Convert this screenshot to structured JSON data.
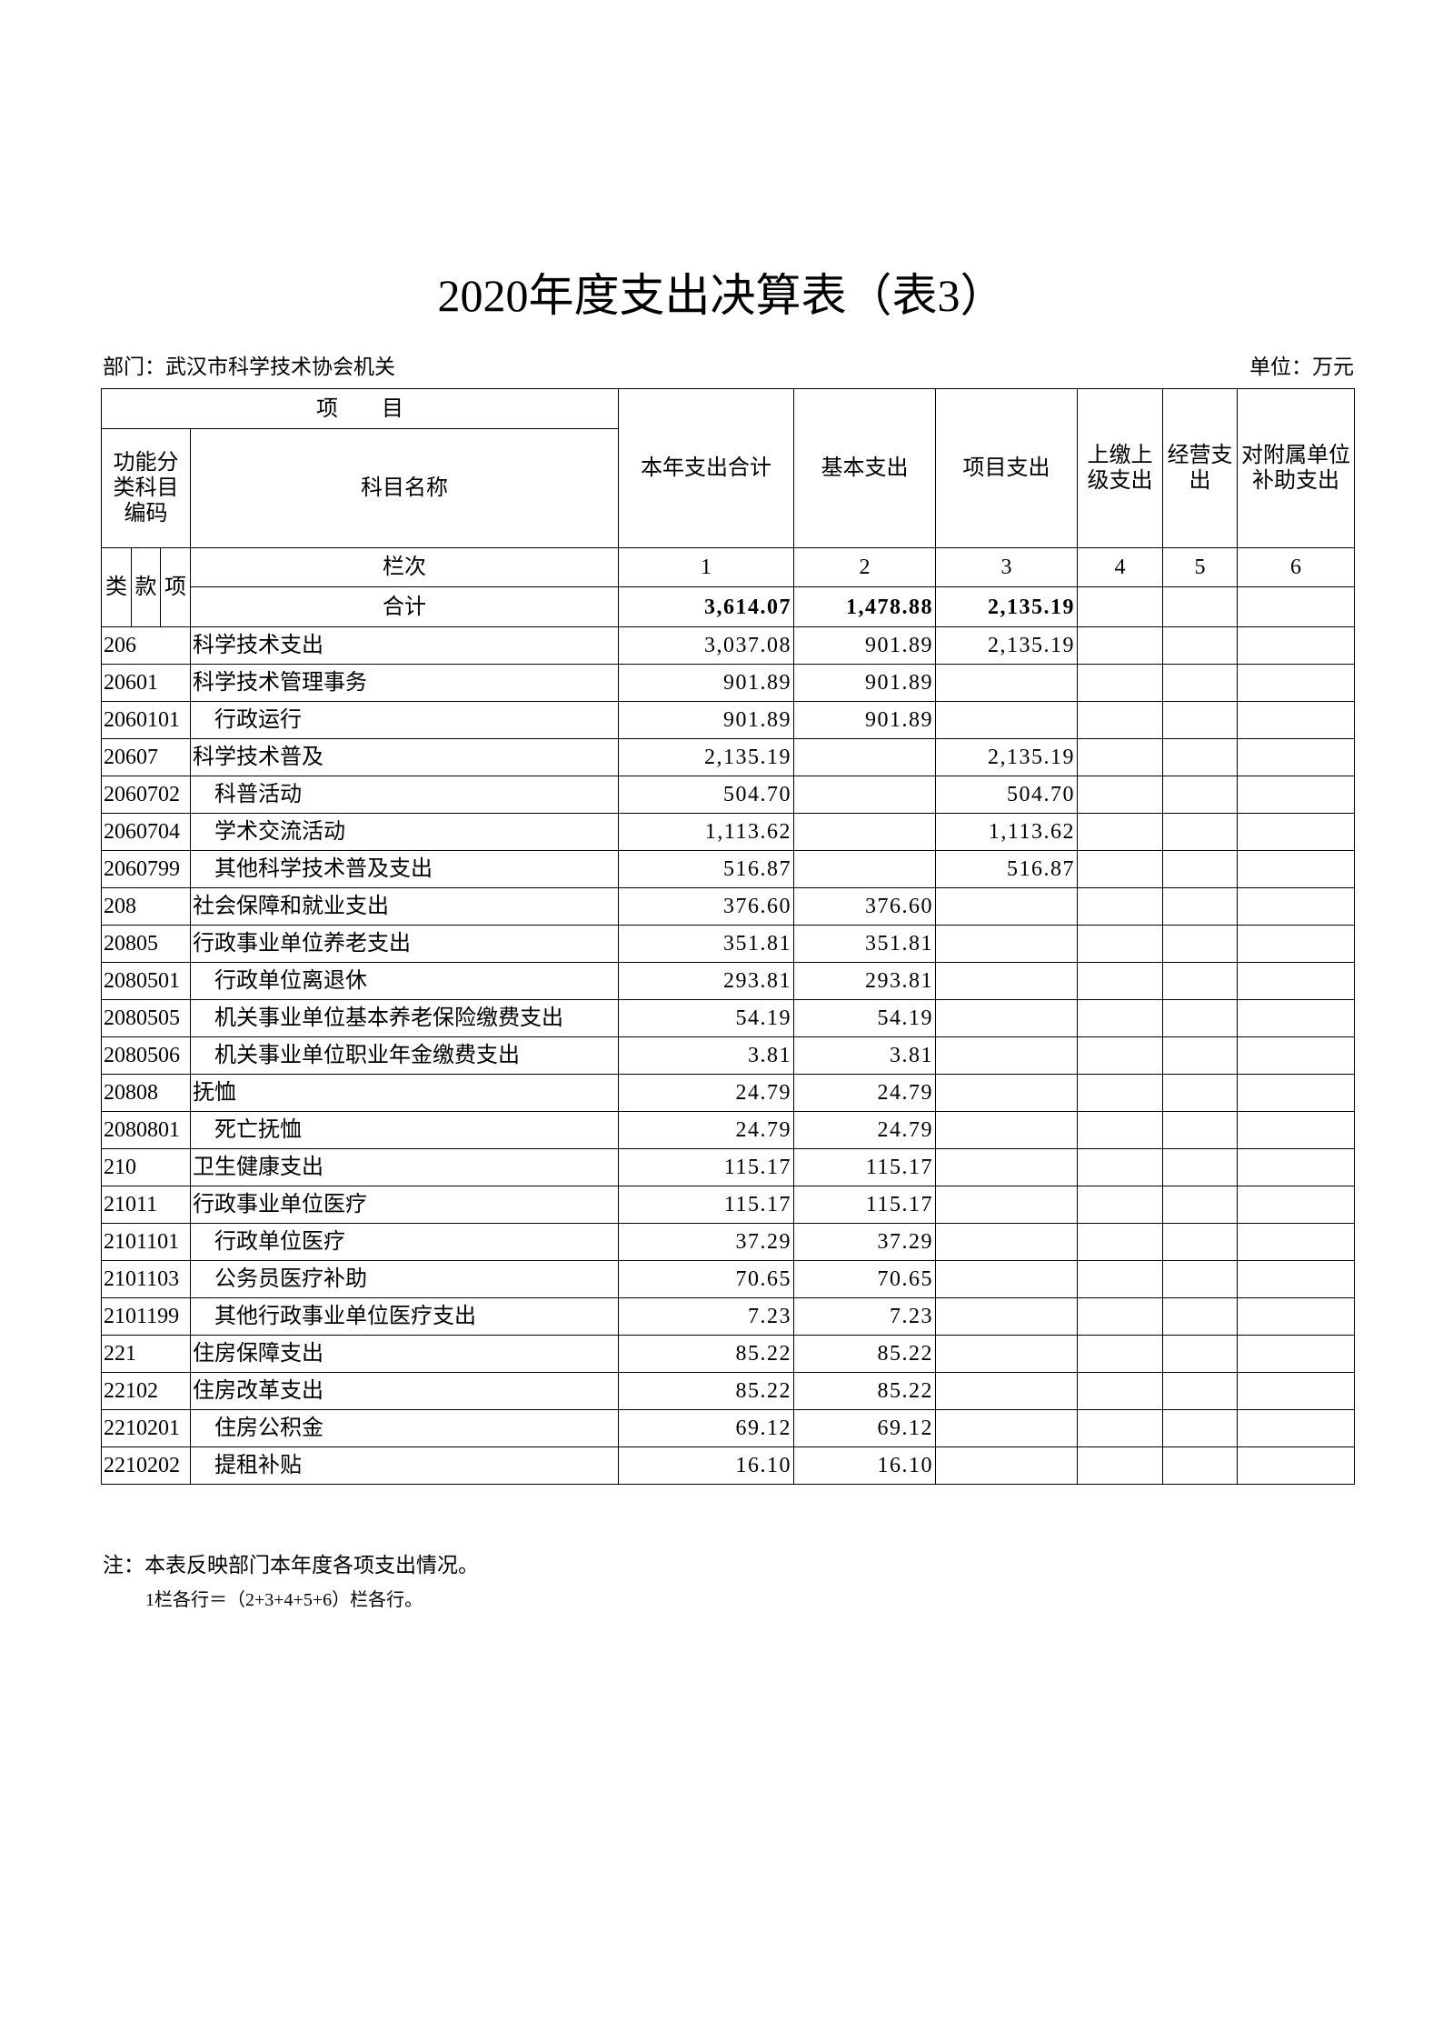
{
  "title": "2020年度支出决算表（表3）",
  "department": "部门：武汉市科学技术协会机关",
  "unit": "单位：万元",
  "headers": {
    "item": "项　　目",
    "code": "功能分类科目编码",
    "name": "科目名称",
    "total": "本年支出合计",
    "basic": "基本支出",
    "project": "项目支出",
    "upper": "上缴上级支出",
    "business": "经营支出",
    "subsidy": "对附属单位补助支出",
    "lei": "类",
    "kuan": "款",
    "xiang": "项",
    "col_label": "栏次",
    "col_nums": [
      "1",
      "2",
      "3",
      "4",
      "5",
      "6"
    ],
    "sum_label": "合计"
  },
  "totals": {
    "total": "3,614.07",
    "basic": "1,478.88",
    "project": "2,135.19"
  },
  "rows": [
    {
      "code": "206",
      "name": "科学技术支出",
      "indent": false,
      "total": "3,037.08",
      "basic": "901.89",
      "project": "2,135.19"
    },
    {
      "code": "20601",
      "name": "科学技术管理事务",
      "indent": false,
      "total": "901.89",
      "basic": "901.89",
      "project": ""
    },
    {
      "code": "2060101",
      "name": "行政运行",
      "indent": true,
      "total": "901.89",
      "basic": "901.89",
      "project": ""
    },
    {
      "code": "20607",
      "name": "科学技术普及",
      "indent": false,
      "total": "2,135.19",
      "basic": "",
      "project": "2,135.19"
    },
    {
      "code": "2060702",
      "name": "科普活动",
      "indent": true,
      "total": "504.70",
      "basic": "",
      "project": "504.70"
    },
    {
      "code": "2060704",
      "name": "学术交流活动",
      "indent": true,
      "total": "1,113.62",
      "basic": "",
      "project": "1,113.62"
    },
    {
      "code": "2060799",
      "name": "其他科学技术普及支出",
      "indent": true,
      "total": "516.87",
      "basic": "",
      "project": "516.87"
    },
    {
      "code": "208",
      "name": "社会保障和就业支出",
      "indent": false,
      "total": "376.60",
      "basic": "376.60",
      "project": ""
    },
    {
      "code": "20805",
      "name": "行政事业单位养老支出",
      "indent": false,
      "total": "351.81",
      "basic": "351.81",
      "project": ""
    },
    {
      "code": "2080501",
      "name": "行政单位离退休",
      "indent": true,
      "total": "293.81",
      "basic": "293.81",
      "project": ""
    },
    {
      "code": "2080505",
      "name": "机关事业单位基本养老保险缴费支出",
      "indent": true,
      "total": "54.19",
      "basic": "54.19",
      "project": ""
    },
    {
      "code": "2080506",
      "name": "机关事业单位职业年金缴费支出",
      "indent": true,
      "total": "3.81",
      "basic": "3.81",
      "project": ""
    },
    {
      "code": "20808",
      "name": "抚恤",
      "indent": false,
      "total": "24.79",
      "basic": "24.79",
      "project": ""
    },
    {
      "code": "2080801",
      "name": "死亡抚恤",
      "indent": true,
      "total": "24.79",
      "basic": "24.79",
      "project": ""
    },
    {
      "code": "210",
      "name": "卫生健康支出",
      "indent": false,
      "total": "115.17",
      "basic": "115.17",
      "project": ""
    },
    {
      "code": "21011",
      "name": "行政事业单位医疗",
      "indent": false,
      "total": "115.17",
      "basic": "115.17",
      "project": ""
    },
    {
      "code": "2101101",
      "name": "行政单位医疗",
      "indent": true,
      "total": "37.29",
      "basic": "37.29",
      "project": ""
    },
    {
      "code": "2101103",
      "name": "公务员医疗补助",
      "indent": true,
      "total": "70.65",
      "basic": "70.65",
      "project": ""
    },
    {
      "code": "2101199",
      "name": "其他行政事业单位医疗支出",
      "indent": true,
      "total": "7.23",
      "basic": "7.23",
      "project": ""
    },
    {
      "code": "221",
      "name": "住房保障支出",
      "indent": false,
      "total": "85.22",
      "basic": "85.22",
      "project": ""
    },
    {
      "code": "22102",
      "name": "住房改革支出",
      "indent": false,
      "total": "85.22",
      "basic": "85.22",
      "project": ""
    },
    {
      "code": "2210201",
      "name": "住房公积金",
      "indent": true,
      "total": "69.12",
      "basic": "69.12",
      "project": ""
    },
    {
      "code": "2210202",
      "name": "提租补贴",
      "indent": true,
      "total": "16.10",
      "basic": "16.10",
      "project": ""
    }
  ],
  "notes": [
    "注：本表反映部门本年度各项支出情况。",
    "1栏各行＝（2+3+4+5+6）栏各行。"
  ]
}
